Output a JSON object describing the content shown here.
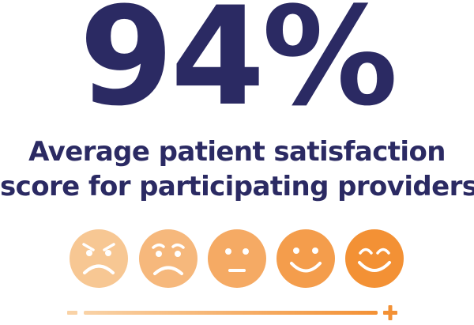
{
  "headline": {
    "value": "94%"
  },
  "caption": {
    "line1": "Average patient satisfaction",
    "line2": "score for participating providers."
  },
  "scale": {
    "faces": [
      {
        "icon": "angry-face-icon",
        "color": "#f7c793"
      },
      {
        "icon": "sad-face-icon",
        "color": "#f6b87c"
      },
      {
        "icon": "neutral-face-icon",
        "color": "#f5aa64"
      },
      {
        "icon": "smile-face-icon",
        "color": "#f49d4c"
      },
      {
        "icon": "happy-face-icon",
        "color": "#f39135"
      }
    ],
    "min_symbol": "-",
    "max_symbol": "+",
    "bar_start_color": "#f9d2a6",
    "bar_end_color": "#f39135"
  },
  "colors": {
    "text": "#2b2a63",
    "face_features": "#ffffff"
  }
}
